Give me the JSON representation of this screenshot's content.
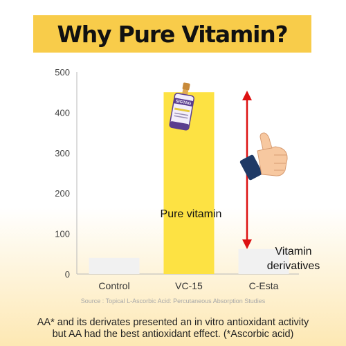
{
  "title": "Why Pure Vitamin?",
  "colors": {
    "title_band": "#f8cc4a",
    "axis": "#b8b8b8",
    "tick_text": "#444444",
    "bar_highlight": "#fde243",
    "bar_muted": "#f1f1f1",
    "arrow": "#dd1111",
    "bottom_gradient": "#fde8b3"
  },
  "chart_data": {
    "type": "bar",
    "title": "Why Pure Vitamin?",
    "categories": [
      "Control",
      "VC-15",
      "C-Esta"
    ],
    "values": [
      40,
      450,
      62
    ],
    "yticks": [
      0,
      100,
      200,
      300,
      400,
      500
    ],
    "ylim": [
      0,
      500
    ],
    "xlabel": "",
    "ylabel": "",
    "grid": false,
    "legend": "none",
    "annotations": {
      "bar_label": "Pure vitamin",
      "derivative_label_line1": "Vitamin",
      "derivative_label_line2": "derivatives",
      "arrow": "double-headed, from C-Esta bar up to VC-15 level",
      "icons": [
        "serum-bottle-icon",
        "thumbs-up-icon"
      ],
      "bottle_label": "SIGTAG"
    }
  },
  "source": "Source : Topical L-Ascorbic Acid: Percutaneous Absorption Studies",
  "caption": {
    "line1": "AA* and its derivates presented an in vitro antioxidant activity",
    "line2": "but AA had the best antioxidant effect. (*Ascorbic acid)"
  }
}
